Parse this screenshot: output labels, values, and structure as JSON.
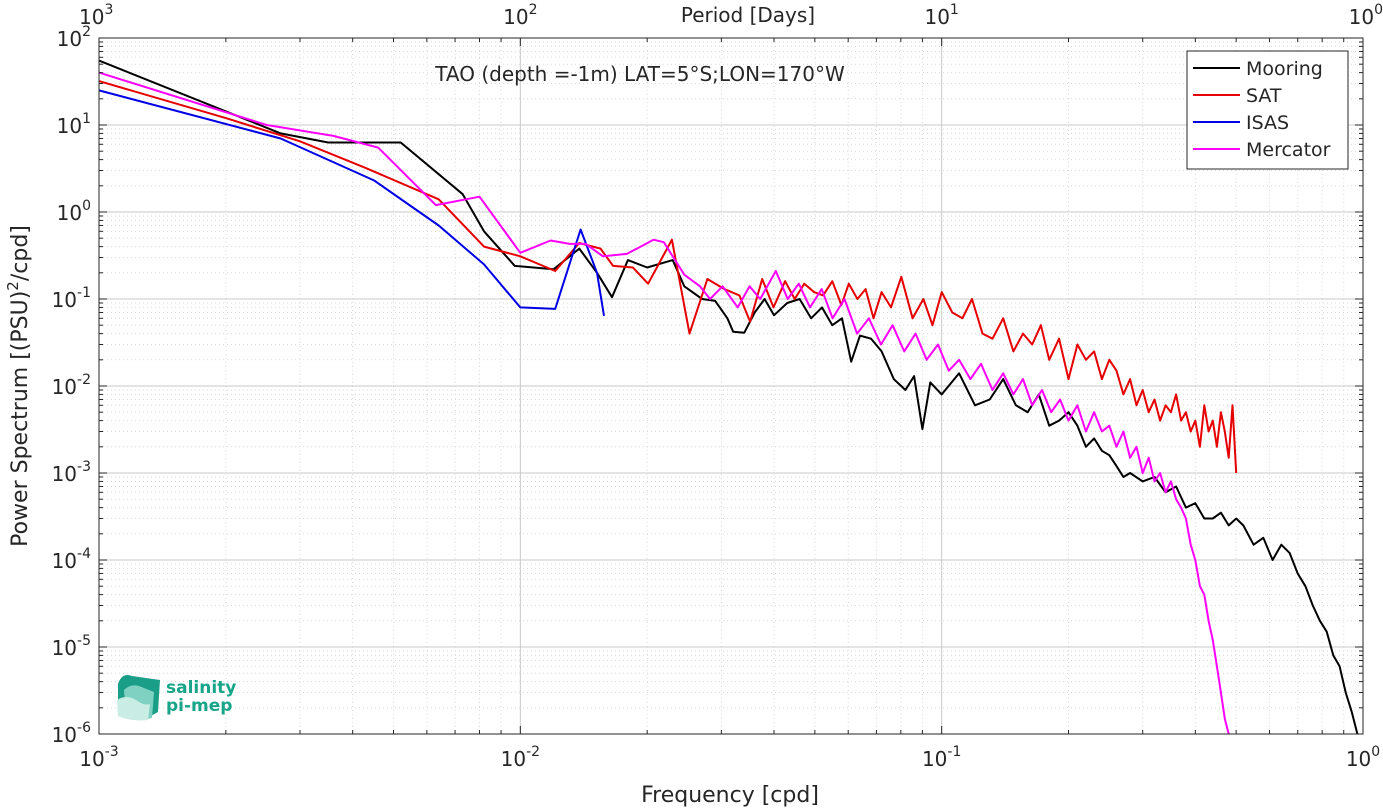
{
  "chart_data": {
    "type": "line",
    "title": "TAO (depth =-1m) LAT=5°S;LON=170°W",
    "xlabel": "Frequency [cpd]",
    "ylabel_base": "Power Spectrum [(PSU)",
    "ylabel_sup": "2",
    "ylabel_tail": "/cpd]",
    "top_axis_label": "Period [Days]",
    "x_scale": "log",
    "y_scale": "log",
    "xlim": [
      0.001,
      1
    ],
    "ylim": [
      1e-06,
      100
    ],
    "grid": true,
    "minor_grid": true,
    "legend_position": "top-right",
    "x_ticks": [
      {
        "value": 0.001,
        "base": "10",
        "exp": "-3"
      },
      {
        "value": 0.01,
        "base": "10",
        "exp": "-2"
      },
      {
        "value": 0.1,
        "base": "10",
        "exp": "-1"
      },
      {
        "value": 1,
        "base": "10",
        "exp": "0"
      }
    ],
    "y_ticks": [
      {
        "value": 100,
        "base": "10",
        "exp": "2"
      },
      {
        "value": 10,
        "base": "10",
        "exp": "1"
      },
      {
        "value": 1,
        "base": "10",
        "exp": "0"
      },
      {
        "value": 0.1,
        "base": "10",
        "exp": "-1"
      },
      {
        "value": 0.01,
        "base": "10",
        "exp": "-2"
      },
      {
        "value": 0.001,
        "base": "10",
        "exp": "-3"
      },
      {
        "value": 0.0001,
        "base": "10",
        "exp": "-4"
      },
      {
        "value": 1e-05,
        "base": "10",
        "exp": "-5"
      },
      {
        "value": 1e-06,
        "base": "10",
        "exp": "-6"
      }
    ],
    "top_ticks": [
      {
        "period": 1000,
        "base": "10",
        "exp": "3"
      },
      {
        "period": 100,
        "base": "10",
        "exp": "2"
      },
      {
        "period": 10,
        "base": "10",
        "exp": "1"
      },
      {
        "period": 1,
        "base": "10",
        "exp": "0"
      }
    ],
    "series": [
      {
        "name": "Mooring",
        "color": "#000000",
        "points": [
          [
            0.001,
            55
          ],
          [
            0.0027,
            8
          ],
          [
            0.0035,
            6.3
          ],
          [
            0.0052,
            6.3
          ],
          [
            0.0073,
            1.6
          ],
          [
            0.0082,
            0.6
          ],
          [
            0.0097,
            0.24
          ],
          [
            0.012,
            0.22
          ],
          [
            0.0138,
            0.38
          ],
          [
            0.0152,
            0.2
          ],
          [
            0.0165,
            0.105
          ],
          [
            0.018,
            0.28
          ],
          [
            0.02,
            0.23
          ],
          [
            0.023,
            0.28
          ],
          [
            0.0245,
            0.14
          ],
          [
            0.027,
            0.1
          ],
          [
            0.029,
            0.095
          ],
          [
            0.031,
            0.06
          ],
          [
            0.032,
            0.042
          ],
          [
            0.034,
            0.041
          ],
          [
            0.036,
            0.07
          ],
          [
            0.038,
            0.1
          ],
          [
            0.04,
            0.065
          ],
          [
            0.043,
            0.09
          ],
          [
            0.046,
            0.1
          ],
          [
            0.049,
            0.06
          ],
          [
            0.052,
            0.08
          ],
          [
            0.055,
            0.05
          ],
          [
            0.058,
            0.06
          ],
          [
            0.061,
            0.019
          ],
          [
            0.064,
            0.038
          ],
          [
            0.068,
            0.035
          ],
          [
            0.072,
            0.025
          ],
          [
            0.077,
            0.012
          ],
          [
            0.082,
            0.009
          ],
          [
            0.086,
            0.013
          ],
          [
            0.09,
            0.0032
          ],
          [
            0.094,
            0.011
          ],
          [
            0.1,
            0.008
          ],
          [
            0.11,
            0.014
          ],
          [
            0.12,
            0.006
          ],
          [
            0.13,
            0.007
          ],
          [
            0.14,
            0.012
          ],
          [
            0.15,
            0.006
          ],
          [
            0.16,
            0.005
          ],
          [
            0.17,
            0.008
          ],
          [
            0.18,
            0.0035
          ],
          [
            0.19,
            0.004
          ],
          [
            0.2,
            0.005
          ],
          [
            0.21,
            0.0035
          ],
          [
            0.22,
            0.002
          ],
          [
            0.23,
            0.0025
          ],
          [
            0.24,
            0.0018
          ],
          [
            0.25,
            0.0016
          ],
          [
            0.26,
            0.0012
          ],
          [
            0.27,
            0.0009
          ],
          [
            0.28,
            0.001
          ],
          [
            0.3,
            0.0008
          ],
          [
            0.32,
            0.0009
          ],
          [
            0.34,
            0.0006
          ],
          [
            0.36,
            0.0007
          ],
          [
            0.38,
            0.0004
          ],
          [
            0.4,
            0.00045
          ],
          [
            0.42,
            0.0003
          ],
          [
            0.44,
            0.0003
          ],
          [
            0.46,
            0.00035
          ],
          [
            0.48,
            0.00025
          ],
          [
            0.5,
            0.0003
          ],
          [
            0.52,
            0.00025
          ],
          [
            0.55,
            0.00015
          ],
          [
            0.58,
            0.00018
          ],
          [
            0.61,
            0.0001
          ],
          [
            0.64,
            0.00015
          ],
          [
            0.67,
            0.00012
          ],
          [
            0.7,
            7e-05
          ],
          [
            0.73,
            5e-05
          ],
          [
            0.76,
            3e-05
          ],
          [
            0.79,
            2e-05
          ],
          [
            0.82,
            1.5e-05
          ],
          [
            0.85,
            8e-06
          ],
          [
            0.88,
            6e-06
          ],
          [
            0.91,
            3e-06
          ],
          [
            0.94,
            1.8e-06
          ],
          [
            0.97,
            1e-06
          ]
        ]
      },
      {
        "name": "SAT",
        "color": "#e60000",
        "points": [
          [
            0.001,
            32
          ],
          [
            0.002,
            12
          ],
          [
            0.003,
            6.5
          ],
          [
            0.0043,
            3.2
          ],
          [
            0.0064,
            1.4
          ],
          [
            0.0082,
            0.4
          ],
          [
            0.01,
            0.31
          ],
          [
            0.0121,
            0.21
          ],
          [
            0.0138,
            0.44
          ],
          [
            0.0155,
            0.38
          ],
          [
            0.0166,
            0.24
          ],
          [
            0.0185,
            0.23
          ],
          [
            0.0201,
            0.15
          ],
          [
            0.0229,
            0.48
          ],
          [
            0.0252,
            0.04
          ],
          [
            0.0278,
            0.17
          ],
          [
            0.0305,
            0.13
          ],
          [
            0.0331,
            0.11
          ],
          [
            0.0351,
            0.055
          ],
          [
            0.0375,
            0.17
          ],
          [
            0.0399,
            0.08
          ],
          [
            0.0425,
            0.16
          ],
          [
            0.0448,
            0.1
          ],
          [
            0.0472,
            0.15
          ],
          [
            0.0498,
            0.12
          ],
          [
            0.0523,
            0.11
          ],
          [
            0.055,
            0.16
          ],
          [
            0.0578,
            0.085
          ],
          [
            0.0602,
            0.15
          ],
          [
            0.0631,
            0.1
          ],
          [
            0.066,
            0.13
          ],
          [
            0.0689,
            0.06
          ],
          [
            0.072,
            0.12
          ],
          [
            0.0758,
            0.08
          ],
          [
            0.0802,
            0.18
          ],
          [
            0.0853,
            0.06
          ],
          [
            0.0905,
            0.1
          ],
          [
            0.0951,
            0.05
          ],
          [
            0.1,
            0.12
          ],
          [
            0.106,
            0.07
          ],
          [
            0.112,
            0.06
          ],
          [
            0.118,
            0.1
          ],
          [
            0.125,
            0.04
          ],
          [
            0.132,
            0.035
          ],
          [
            0.14,
            0.06
          ],
          [
            0.148,
            0.025
          ],
          [
            0.156,
            0.04
          ],
          [
            0.164,
            0.03
          ],
          [
            0.172,
            0.05
          ],
          [
            0.18,
            0.02
          ],
          [
            0.19,
            0.035
          ],
          [
            0.2,
            0.012
          ],
          [
            0.21,
            0.03
          ],
          [
            0.22,
            0.02
          ],
          [
            0.23,
            0.025
          ],
          [
            0.24,
            0.012
          ],
          [
            0.25,
            0.02
          ],
          [
            0.26,
            0.015
          ],
          [
            0.27,
            0.008
          ],
          [
            0.28,
            0.012
          ],
          [
            0.29,
            0.006
          ],
          [
            0.3,
            0.009
          ],
          [
            0.31,
            0.005
          ],
          [
            0.32,
            0.007
          ],
          [
            0.33,
            0.004
          ],
          [
            0.34,
            0.006
          ],
          [
            0.35,
            0.005
          ],
          [
            0.36,
            0.008
          ],
          [
            0.37,
            0.004
          ],
          [
            0.38,
            0.005
          ],
          [
            0.39,
            0.003
          ],
          [
            0.4,
            0.004
          ],
          [
            0.41,
            0.002
          ],
          [
            0.42,
            0.006
          ],
          [
            0.43,
            0.003
          ],
          [
            0.44,
            0.004
          ],
          [
            0.45,
            0.002
          ],
          [
            0.46,
            0.005
          ],
          [
            0.47,
            0.003
          ],
          [
            0.48,
            0.0015
          ],
          [
            0.49,
            0.006
          ],
          [
            0.5,
            0.001
          ]
        ]
      },
      {
        "name": "ISAS",
        "color": "#0000e6",
        "points": [
          [
            0.001,
            25
          ],
          [
            0.0027,
            7
          ],
          [
            0.0045,
            2.3
          ],
          [
            0.0064,
            0.7
          ],
          [
            0.0082,
            0.25
          ],
          [
            0.01,
            0.08
          ],
          [
            0.0121,
            0.077
          ],
          [
            0.0139,
            0.63
          ],
          [
            0.0152,
            0.2
          ],
          [
            0.0158,
            0.064
          ]
        ]
      },
      {
        "name": "Mercator",
        "color": "#ff00ff",
        "points": [
          [
            0.001,
            40
          ],
          [
            0.0025,
            10
          ],
          [
            0.0036,
            7.5
          ],
          [
            0.0046,
            5.5
          ],
          [
            0.0063,
            1.2
          ],
          [
            0.008,
            1.5
          ],
          [
            0.01,
            0.34
          ],
          [
            0.0118,
            0.47
          ],
          [
            0.0131,
            0.43
          ],
          [
            0.0143,
            0.43
          ],
          [
            0.0157,
            0.31
          ],
          [
            0.0179,
            0.33
          ],
          [
            0.0207,
            0.48
          ],
          [
            0.0219,
            0.45
          ],
          [
            0.0245,
            0.19
          ],
          [
            0.0267,
            0.14
          ],
          [
            0.0282,
            0.1
          ],
          [
            0.0302,
            0.14
          ],
          [
            0.0328,
            0.08
          ],
          [
            0.035,
            0.14
          ],
          [
            0.0371,
            0.1
          ],
          [
            0.0404,
            0.21
          ],
          [
            0.0431,
            0.1
          ],
          [
            0.0458,
            0.15
          ],
          [
            0.0487,
            0.08
          ],
          [
            0.0519,
            0.13
          ],
          [
            0.0551,
            0.06
          ],
          [
            0.0588,
            0.1
          ],
          [
            0.063,
            0.04
          ],
          [
            0.0672,
            0.06
          ],
          [
            0.0718,
            0.03
          ],
          [
            0.0765,
            0.05
          ],
          [
            0.0815,
            0.025
          ],
          [
            0.0867,
            0.04
          ],
          [
            0.0921,
            0.02
          ],
          [
            0.098,
            0.03
          ],
          [
            0.104,
            0.015
          ],
          [
            0.11,
            0.02
          ],
          [
            0.117,
            0.012
          ],
          [
            0.124,
            0.018
          ],
          [
            0.132,
            0.009
          ],
          [
            0.14,
            0.014
          ],
          [
            0.148,
            0.008
          ],
          [
            0.156,
            0.012
          ],
          [
            0.164,
            0.006
          ],
          [
            0.173,
            0.009
          ],
          [
            0.182,
            0.005
          ],
          [
            0.191,
            0.007
          ],
          [
            0.2,
            0.004
          ],
          [
            0.21,
            0.006
          ],
          [
            0.22,
            0.003
          ],
          [
            0.23,
            0.005
          ],
          [
            0.24,
            0.003
          ],
          [
            0.25,
            0.0035
          ],
          [
            0.26,
            0.002
          ],
          [
            0.27,
            0.003
          ],
          [
            0.28,
            0.0015
          ],
          [
            0.29,
            0.002
          ],
          [
            0.3,
            0.001
          ],
          [
            0.31,
            0.0015
          ],
          [
            0.32,
            0.0008
          ],
          [
            0.33,
            0.001
          ],
          [
            0.34,
            0.0006
          ],
          [
            0.35,
            0.0008
          ],
          [
            0.36,
            0.0005
          ],
          [
            0.37,
            0.0004
          ],
          [
            0.38,
            0.0003
          ],
          [
            0.39,
            0.00015
          ],
          [
            0.4,
            0.0001
          ],
          [
            0.41,
            5e-05
          ],
          [
            0.42,
            4e-05
          ],
          [
            0.43,
            2e-05
          ],
          [
            0.44,
            1.2e-05
          ],
          [
            0.45,
            6e-06
          ],
          [
            0.46,
            3e-06
          ],
          [
            0.47,
            1.5e-06
          ],
          [
            0.48,
            1e-06
          ]
        ]
      }
    ]
  },
  "logo": {
    "line1": "salinity",
    "line2": "pi-mep",
    "color": "#17a589"
  }
}
